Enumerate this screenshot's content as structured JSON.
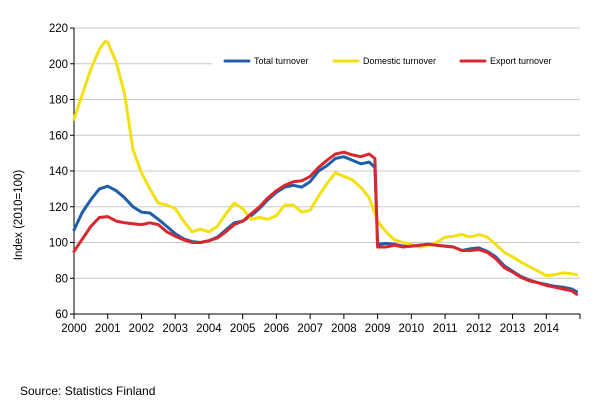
{
  "chart_data": {
    "type": "line",
    "ylabel": "Index (2010=100)",
    "xlabel": "",
    "ylim": [
      60,
      220
    ],
    "yticks": [
      60,
      80,
      100,
      120,
      140,
      160,
      180,
      200,
      220
    ],
    "xlim": [
      2000,
      2015
    ],
    "xticks": [
      "2000",
      "2001",
      "2002",
      "2003",
      "2004",
      "2005",
      "2006",
      "2007",
      "2008",
      "2009",
      "2010",
      "2011",
      "2012",
      "2013",
      "2014"
    ],
    "grid": "horizontal",
    "legend_position": "top-right",
    "series": [
      {
        "name": "Total turnover",
        "color": "#1F5FAA",
        "points": [
          [
            2000.0,
            107
          ],
          [
            2000.25,
            117
          ],
          [
            2000.5,
            124
          ],
          [
            2000.75,
            130
          ],
          [
            2001.0,
            131.5
          ],
          [
            2001.25,
            129
          ],
          [
            2001.5,
            125
          ],
          [
            2001.75,
            120
          ],
          [
            2002.0,
            117
          ],
          [
            2002.25,
            116.5
          ],
          [
            2002.5,
            113
          ],
          [
            2002.75,
            109
          ],
          [
            2003.0,
            105
          ],
          [
            2003.25,
            102
          ],
          [
            2003.5,
            100.5
          ],
          [
            2003.75,
            100
          ],
          [
            2004.0,
            101
          ],
          [
            2004.25,
            103
          ],
          [
            2004.5,
            107
          ],
          [
            2004.75,
            111
          ],
          [
            2005.0,
            112
          ],
          [
            2005.25,
            115
          ],
          [
            2005.5,
            119
          ],
          [
            2005.75,
            124
          ],
          [
            2006.0,
            128
          ],
          [
            2006.25,
            131
          ],
          [
            2006.5,
            132
          ],
          [
            2006.75,
            131
          ],
          [
            2007.0,
            134
          ],
          [
            2007.25,
            140
          ],
          [
            2007.5,
            143
          ],
          [
            2007.75,
            147
          ],
          [
            2008.0,
            148
          ],
          [
            2008.25,
            146
          ],
          [
            2008.5,
            144
          ],
          [
            2008.75,
            145
          ],
          [
            2008.92,
            142
          ],
          [
            2009.0,
            99
          ],
          [
            2009.25,
            99.5
          ],
          [
            2009.5,
            99
          ],
          [
            2009.75,
            98
          ],
          [
            2010.0,
            98
          ],
          [
            2010.25,
            98.5
          ],
          [
            2010.5,
            99
          ],
          [
            2010.75,
            98.5
          ],
          [
            2011.0,
            98
          ],
          [
            2011.25,
            97.5
          ],
          [
            2011.5,
            95.5
          ],
          [
            2011.75,
            96.5
          ],
          [
            2012.0,
            97
          ],
          [
            2012.25,
            95
          ],
          [
            2012.5,
            92
          ],
          [
            2012.75,
            87
          ],
          [
            2013.0,
            84
          ],
          [
            2013.25,
            81
          ],
          [
            2013.5,
            79
          ],
          [
            2013.75,
            77.5
          ],
          [
            2014.0,
            76.5
          ],
          [
            2014.25,
            75.5
          ],
          [
            2014.5,
            75
          ],
          [
            2014.75,
            74
          ],
          [
            2014.9,
            72.5
          ]
        ]
      },
      {
        "name": "Domestic turnover",
        "color": "#F2E010",
        "points": [
          [
            2000.0,
            169
          ],
          [
            2000.25,
            183
          ],
          [
            2000.5,
            197
          ],
          [
            2000.75,
            208
          ],
          [
            2000.92,
            212.5
          ],
          [
            2001.0,
            212
          ],
          [
            2001.25,
            201
          ],
          [
            2001.5,
            183
          ],
          [
            2001.75,
            152
          ],
          [
            2002.0,
            139
          ],
          [
            2002.25,
            130
          ],
          [
            2002.5,
            122
          ],
          [
            2002.75,
            121
          ],
          [
            2003.0,
            119
          ],
          [
            2003.25,
            112
          ],
          [
            2003.5,
            106
          ],
          [
            2003.75,
            107.5
          ],
          [
            2004.0,
            106
          ],
          [
            2004.25,
            109
          ],
          [
            2004.5,
            116
          ],
          [
            2004.75,
            122
          ],
          [
            2005.0,
            119
          ],
          [
            2005.25,
            113
          ],
          [
            2005.5,
            114
          ],
          [
            2005.75,
            113
          ],
          [
            2006.0,
            115
          ],
          [
            2006.25,
            121
          ],
          [
            2006.5,
            121
          ],
          [
            2006.75,
            117
          ],
          [
            2007.0,
            118
          ],
          [
            2007.25,
            126
          ],
          [
            2007.5,
            133
          ],
          [
            2007.75,
            139
          ],
          [
            2008.0,
            137
          ],
          [
            2008.25,
            135
          ],
          [
            2008.5,
            131
          ],
          [
            2008.75,
            125
          ],
          [
            2009.0,
            112
          ],
          [
            2009.25,
            106
          ],
          [
            2009.5,
            101.5
          ],
          [
            2009.75,
            100
          ],
          [
            2010.0,
            99
          ],
          [
            2010.25,
            97.5
          ],
          [
            2010.5,
            98.5
          ],
          [
            2010.75,
            100
          ],
          [
            2011.0,
            103
          ],
          [
            2011.25,
            103.5
          ],
          [
            2011.5,
            104.5
          ],
          [
            2011.75,
            103
          ],
          [
            2012.0,
            104.5
          ],
          [
            2012.25,
            103
          ],
          [
            2012.5,
            99
          ],
          [
            2012.75,
            94.5
          ],
          [
            2013.0,
            92
          ],
          [
            2013.25,
            89
          ],
          [
            2013.5,
            86.5
          ],
          [
            2013.75,
            84
          ],
          [
            2014.0,
            81.5
          ],
          [
            2014.25,
            82
          ],
          [
            2014.5,
            83
          ],
          [
            2014.75,
            82.5
          ],
          [
            2014.9,
            82
          ]
        ]
      },
      {
        "name": "Export turnover",
        "color": "#D7282F",
        "points": [
          [
            2000.0,
            95
          ],
          [
            2000.25,
            102
          ],
          [
            2000.5,
            109
          ],
          [
            2000.75,
            114
          ],
          [
            2001.0,
            114.5
          ],
          [
            2001.25,
            112
          ],
          [
            2001.5,
            111
          ],
          [
            2001.75,
            110.5
          ],
          [
            2002.0,
            110
          ],
          [
            2002.25,
            111
          ],
          [
            2002.5,
            110
          ],
          [
            2002.75,
            106
          ],
          [
            2003.0,
            103.5
          ],
          [
            2003.25,
            101.5
          ],
          [
            2003.5,
            100
          ],
          [
            2003.75,
            100
          ],
          [
            2004.0,
            101
          ],
          [
            2004.25,
            102.5
          ],
          [
            2004.5,
            106
          ],
          [
            2004.75,
            110
          ],
          [
            2005.0,
            112
          ],
          [
            2005.25,
            116
          ],
          [
            2005.5,
            120
          ],
          [
            2005.75,
            125
          ],
          [
            2006.0,
            129
          ],
          [
            2006.25,
            132
          ],
          [
            2006.5,
            134
          ],
          [
            2006.75,
            134.5
          ],
          [
            2007.0,
            137
          ],
          [
            2007.25,
            142
          ],
          [
            2007.5,
            146
          ],
          [
            2007.75,
            149.5
          ],
          [
            2008.0,
            150.5
          ],
          [
            2008.25,
            149
          ],
          [
            2008.5,
            148
          ],
          [
            2008.75,
            149.5
          ],
          [
            2008.92,
            147
          ],
          [
            2009.0,
            97.5
          ],
          [
            2009.25,
            97.5
          ],
          [
            2009.5,
            98.5
          ],
          [
            2009.75,
            97.5
          ],
          [
            2010.0,
            98
          ],
          [
            2010.25,
            98.5
          ],
          [
            2010.5,
            99
          ],
          [
            2010.75,
            98.5
          ],
          [
            2011.0,
            98
          ],
          [
            2011.25,
            97.5
          ],
          [
            2011.5,
            95.5
          ],
          [
            2011.75,
            95.5
          ],
          [
            2012.0,
            96
          ],
          [
            2012.25,
            94.5
          ],
          [
            2012.5,
            91
          ],
          [
            2012.75,
            86
          ],
          [
            2013.0,
            83.5
          ],
          [
            2013.25,
            80.5
          ],
          [
            2013.5,
            78.5
          ],
          [
            2013.75,
            77.5
          ],
          [
            2014.0,
            76
          ],
          [
            2014.25,
            75
          ],
          [
            2014.5,
            74
          ],
          [
            2014.75,
            73
          ],
          [
            2014.9,
            71
          ]
        ]
      }
    ]
  },
  "footer": {
    "source_text": "Source:  Statistics Finland"
  }
}
